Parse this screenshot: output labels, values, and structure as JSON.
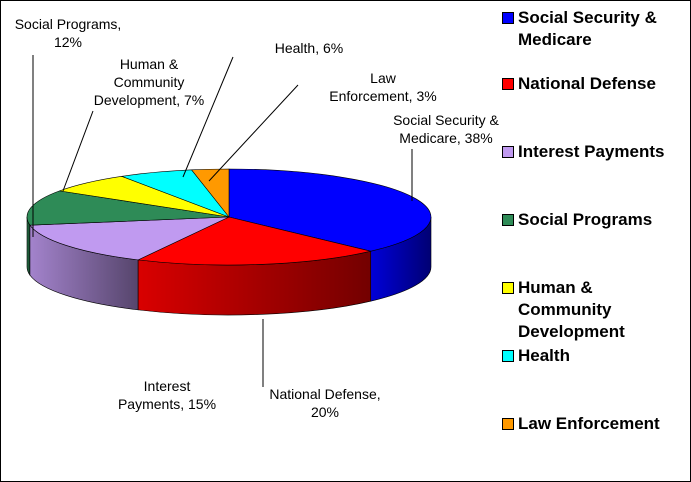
{
  "chart_data": {
    "type": "pie",
    "title": "",
    "slices": [
      {
        "name": "Social Security & Medicare",
        "value": 38,
        "color": "#0000FF",
        "label": "Social Security &\nMedicare, 38%"
      },
      {
        "name": "National Defense",
        "value": 20,
        "color": "#FF0000",
        "label": "National Defense,\n20%"
      },
      {
        "name": "Interest Payments",
        "value": 15,
        "color": "#C09AF0",
        "label": "Interest\nPayments, 15%"
      },
      {
        "name": "Social Programs",
        "value": 12,
        "color": "#2E8B57",
        "label": "Social Programs,\n12%"
      },
      {
        "name": "Human & Community Development",
        "value": 7,
        "color": "#FFFF00",
        "label": "Human &\nCommunity\nDevelopment, 7%"
      },
      {
        "name": "Health",
        "value": 6,
        "color": "#00FFFF",
        "label": "Health, 6%"
      },
      {
        "name": "Law Enforcement",
        "value": 3,
        "color": "#FF9900",
        "label": "Law\nEnforcement, 3%"
      }
    ],
    "legend": {
      "placement": "right",
      "entries": [
        "Social Security &\nMedicare",
        "National Defense",
        "Interest Payments",
        "Social Programs",
        "Human &\nCommunity\nDevelopment",
        "Health",
        "Law Enforcement"
      ]
    }
  }
}
